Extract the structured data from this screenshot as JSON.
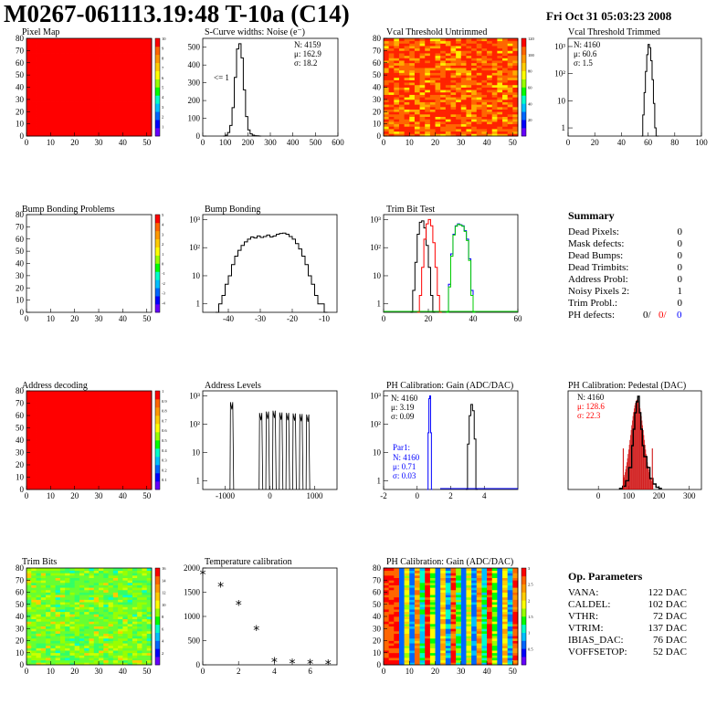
{
  "header": {
    "title": "M0267-061113.19:48 T-10a (C14)",
    "date": "Fri Oct 31 05:03:23 2008"
  },
  "colors": {
    "map_red": "#ff0000",
    "hist_line": "#000000",
    "blue": "#0000ff",
    "red": "#ff0000",
    "green": "#00cc00",
    "hatch_red": "#cc0000"
  },
  "chart_data": [
    {
      "id": "pixel-map",
      "type": "heatmap",
      "title": "Pixel Map",
      "xlim": [
        0,
        52
      ],
      "ylim": [
        0,
        80
      ],
      "xticks": [
        "0",
        "10",
        "20",
        "30",
        "40",
        "50"
      ],
      "yticks": [
        "0",
        "10",
        "20",
        "30",
        "40",
        "50",
        "60",
        "70",
        "80"
      ],
      "fill": "uniform red",
      "zlim": [
        0,
        10
      ],
      "zticks": [
        "1",
        "2",
        "3",
        "4",
        "5",
        "6",
        "7",
        "8",
        "9",
        "10"
      ]
    },
    {
      "id": "scurve",
      "type": "line",
      "title": "S-Curve widths: Noise (e⁻)",
      "xlim": [
        0,
        600
      ],
      "ylim": [
        0,
        550
      ],
      "xticks": [
        "0",
        "100",
        "200",
        "300",
        "400",
        "500",
        "600"
      ],
      "yticks": [
        "0",
        "100",
        "200",
        "300",
        "400",
        "500"
      ],
      "stats": [
        "N: 4159",
        "μ: 162.9",
        "σ: 18.2"
      ],
      "annotation": "<= 1",
      "x": [
        90,
        100,
        110,
        120,
        130,
        140,
        150,
        160,
        170,
        180,
        190,
        200,
        210,
        220,
        230,
        240,
        250
      ],
      "y": [
        0,
        5,
        20,
        60,
        160,
        330,
        490,
        520,
        440,
        260,
        110,
        35,
        12,
        5,
        2,
        1,
        0
      ]
    },
    {
      "id": "vcal-untrimmed",
      "type": "heatmap",
      "title": "Vcal Threshold Untrimmed",
      "xlim": [
        0,
        52
      ],
      "ylim": [
        0,
        80
      ],
      "xticks": [
        "0",
        "10",
        "20",
        "30",
        "40",
        "50"
      ],
      "yticks": [
        "0",
        "10",
        "20",
        "30",
        "40",
        "50",
        "60",
        "70",
        "80"
      ],
      "fill": "noisy red/orange/yellow",
      "zlim": [
        0,
        120
      ],
      "zticks": [
        "20",
        "40",
        "60",
        "80",
        "100",
        "120"
      ]
    },
    {
      "id": "vcal-trimmed",
      "type": "line",
      "title": "Vcal Threshold Trimmed",
      "log": true,
      "xlim": [
        0,
        100
      ],
      "ylim": [
        0.5,
        2000
      ],
      "xticks": [
        "0",
        "20",
        "40",
        "60",
        "80",
        "100"
      ],
      "stats": [
        "N: 4160",
        "μ: 60.6",
        "σ:  1.5"
      ],
      "x": [
        55,
        56,
        57,
        58,
        59,
        60,
        61,
        62,
        63,
        64,
        65,
        66,
        67
      ],
      "y": [
        0.5,
        3,
        20,
        120,
        500,
        1200,
        900,
        300,
        60,
        8,
        1,
        0.5,
        0.5
      ]
    },
    {
      "id": "bump-problems",
      "type": "heatmap",
      "title": "Bump Bonding Problems",
      "xlim": [
        0,
        52
      ],
      "ylim": [
        0,
        80
      ],
      "xticks": [
        "0",
        "10",
        "20",
        "30",
        "40",
        "50"
      ],
      "yticks": [
        "0",
        "10",
        "20",
        "30",
        "40",
        "50",
        "60",
        "70",
        "80"
      ],
      "fill": "empty",
      "zlim": [
        -5,
        5
      ],
      "zticks": [
        "-4",
        "-3",
        "-2",
        "-1",
        "0",
        "1",
        "2",
        "3",
        "4",
        "5"
      ]
    },
    {
      "id": "bump-bonding",
      "type": "line",
      "title": "Bump Bonding",
      "log": true,
      "xlim": [
        -48,
        -6
      ],
      "ylim": [
        0.5,
        1500
      ],
      "xticks": [
        "-40",
        "-30",
        "-20",
        "-10"
      ],
      "x": [
        -44,
        -43,
        -42,
        -41,
        -40,
        -39,
        -38,
        -37,
        -36,
        -35,
        -34,
        -33,
        -32,
        -31,
        -30,
        -29,
        -28,
        -27,
        -26,
        -25,
        -24,
        -23,
        -22,
        -21,
        -20,
        -19,
        -18,
        -17,
        -16,
        -15,
        -14,
        -13,
        -12,
        -11,
        -10
      ],
      "y": [
        0.5,
        1,
        2,
        5,
        10,
        25,
        50,
        80,
        120,
        160,
        200,
        240,
        220,
        260,
        230,
        250,
        280,
        240,
        260,
        300,
        320,
        330,
        300,
        250,
        200,
        140,
        90,
        50,
        25,
        10,
        5,
        2,
        1,
        1,
        0.5
      ]
    },
    {
      "id": "trim-bit-test",
      "type": "line",
      "title": "Trim Bit Test",
      "log": true,
      "xlim": [
        0,
        60
      ],
      "ylim": [
        0.5,
        1500
      ],
      "xticks": [
        "0",
        "20",
        "40",
        "60"
      ],
      "series": [
        {
          "color": "#000000",
          "x": [
            12,
            13,
            14,
            15,
            16,
            17,
            18,
            19,
            20,
            21,
            22
          ],
          "y": [
            0.5,
            3,
            30,
            300,
            800,
            900,
            500,
            120,
            20,
            2,
            0.5
          ]
        },
        {
          "color": "#ff0000",
          "x": [
            15,
            16,
            17,
            18,
            19,
            20,
            21,
            22,
            23,
            24,
            25
          ],
          "y": [
            0.5,
            2,
            20,
            200,
            700,
            1000,
            600,
            150,
            20,
            2,
            0.5
          ]
        },
        {
          "color": "#0000ff",
          "x": [
            28,
            29,
            30,
            31,
            32,
            33,
            34,
            35,
            36,
            37,
            38,
            39,
            40
          ],
          "y": [
            0.5,
            5,
            60,
            300,
            600,
            700,
            650,
            600,
            400,
            200,
            40,
            3,
            0.5
          ]
        },
        {
          "color": "#00cc00",
          "x": [
            28,
            29,
            30,
            31,
            32,
            33,
            34,
            35,
            36,
            37,
            38,
            39,
            40
          ],
          "y": [
            0.5,
            4,
            50,
            280,
            580,
            680,
            640,
            580,
            380,
            180,
            35,
            2,
            0.5
          ]
        }
      ]
    },
    {
      "id": "address-decoding",
      "type": "heatmap",
      "title": "Address decoding",
      "xlim": [
        0,
        52
      ],
      "ylim": [
        0,
        80
      ],
      "xticks": [
        "0",
        "10",
        "20",
        "30",
        "40",
        "50"
      ],
      "yticks": [
        "0",
        "10",
        "20",
        "30",
        "40",
        "50",
        "60",
        "70",
        "80"
      ],
      "fill": "uniform red",
      "zlim": [
        0,
        1
      ],
      "zticks": [
        "0.1",
        "0.2",
        "0.3",
        "0.4",
        "0.5",
        "0.6",
        "0.7",
        "0.8",
        "0.9",
        "1"
      ]
    },
    {
      "id": "address-levels",
      "type": "line",
      "title": "Address Levels",
      "log": true,
      "xlim": [
        -1500,
        1500
      ],
      "ylim": [
        0.5,
        1500
      ],
      "xticks": [
        "-1000",
        "0",
        "1000"
      ],
      "peaks": [
        -850,
        -200,
        -50,
        100,
        250,
        400,
        550,
        700,
        850
      ],
      "peak_heights": [
        600,
        250,
        280,
        300,
        260,
        250,
        240,
        230,
        220
      ]
    },
    {
      "id": "ph-gain",
      "type": "line",
      "title": "PH Calibration: Gain (ADC/DAC)",
      "log": true,
      "xlim": [
        -2,
        6
      ],
      "ylim": [
        0.5,
        1500
      ],
      "xticks": [
        "-2",
        "0",
        "2",
        "4"
      ],
      "stats": [
        "N: 4160",
        "μ: 3.19",
        "σ: 0.09"
      ],
      "par_label": "Par1:",
      "par_stats": [
        "N: 4160",
        "μ: 0.71",
        "σ: 0.03"
      ],
      "series": [
        {
          "color": "#000000",
          "x": [
            2.9,
            3.0,
            3.1,
            3.2,
            3.3,
            3.4,
            3.5
          ],
          "y": [
            0.5,
            20,
            200,
            500,
            300,
            30,
            0.5
          ]
        },
        {
          "color": "#0000ff",
          "x": [
            0.6,
            0.65,
            0.7,
            0.75,
            0.8,
            0.85
          ],
          "y": [
            0.5,
            50,
            800,
            1000,
            50,
            0.5
          ]
        }
      ]
    },
    {
      "id": "ph-pedestal",
      "type": "line",
      "title": "PH Calibration: Pedestal (DAC)",
      "xlim": [
        -100,
        340
      ],
      "ylim": [
        0,
        90
      ],
      "xticks": [
        "0",
        "100",
        "200",
        "300"
      ],
      "stats": [
        "N: 4160",
        "μ: 128.6",
        "σ: 22.3"
      ],
      "x": [
        70,
        80,
        90,
        100,
        110,
        115,
        120,
        125,
        130,
        135,
        140,
        145,
        150,
        160,
        170,
        180,
        190,
        200
      ],
      "y": [
        1,
        3,
        8,
        20,
        40,
        55,
        70,
        80,
        85,
        70,
        55,
        40,
        30,
        20,
        10,
        5,
        2,
        1
      ]
    },
    {
      "id": "trim-bits",
      "type": "heatmap",
      "title": "Trim Bits",
      "xlim": [
        0,
        52
      ],
      "ylim": [
        0,
        80
      ],
      "xticks": [
        "0",
        "10",
        "20",
        "30",
        "40",
        "50"
      ],
      "yticks": [
        "0",
        "10",
        "20",
        "30",
        "40",
        "50",
        "60",
        "70",
        "80"
      ],
      "fill": "noisy green/yellow",
      "zlim": [
        0,
        16
      ],
      "zticks": [
        "2",
        "4",
        "6",
        "8",
        "10",
        "12",
        "14",
        "16"
      ]
    },
    {
      "id": "temp-calibration",
      "type": "scatter",
      "title": "Temperature calibration",
      "xlim": [
        0,
        7.5
      ],
      "ylim": [
        0,
        2000
      ],
      "xticks": [
        "0",
        "2",
        "4",
        "6"
      ],
      "yticks": [
        "0",
        "500",
        "1000",
        "1500",
        "2000"
      ],
      "x": [
        0,
        1,
        2,
        3,
        4,
        5,
        6,
        7
      ],
      "y": [
        1870,
        1610,
        1240,
        720,
        60,
        30,
        20,
        10
      ]
    },
    {
      "id": "ph-gain-map",
      "type": "heatmap",
      "title": "PH Calibration: Gain (ADC/DAC)",
      "xlim": [
        0,
        52
      ],
      "ylim": [
        0,
        80
      ],
      "xticks": [
        "0",
        "10",
        "20",
        "30",
        "40",
        "50"
      ],
      "yticks": [
        "0",
        "10",
        "20",
        "30",
        "40",
        "50",
        "60",
        "70",
        "80"
      ],
      "fill": "column stripes",
      "zlim": [
        0,
        3.4
      ],
      "zticks": [
        "0.5",
        "1",
        "1.5",
        "2",
        "2.5",
        "3"
      ]
    }
  ],
  "summary": {
    "title": "Summary",
    "rows": [
      {
        "label": "Dead Pixels:",
        "value": "0"
      },
      {
        "label": "Mask defects:",
        "value": "0"
      },
      {
        "label": "Dead Bumps:",
        "value": "0"
      },
      {
        "label": "Dead Trimbits:",
        "value": "0"
      },
      {
        "label": "Address Probl:",
        "value": "0"
      },
      {
        "label": "Noisy Pixels 2:",
        "value": "1"
      },
      {
        "label": "Trim Probl.:",
        "value": "0"
      }
    ],
    "ph_label": "PH defects:",
    "ph_black": "0/",
    "ph_red": "0/",
    "ph_blue": "0"
  },
  "op_params": {
    "title": "Op. Parameters",
    "rows": [
      {
        "label": "VANA:",
        "value": "122 DAC"
      },
      {
        "label": "CALDEL:",
        "value": "102 DAC"
      },
      {
        "label": "VTHR:",
        "value": "72 DAC"
      },
      {
        "label": "VTRIM:",
        "value": "137 DAC"
      },
      {
        "label": "IBIAS_DAC:",
        "value": "76 DAC"
      },
      {
        "label": "VOFFSETOP:",
        "value": "52 DAC"
      }
    ]
  }
}
